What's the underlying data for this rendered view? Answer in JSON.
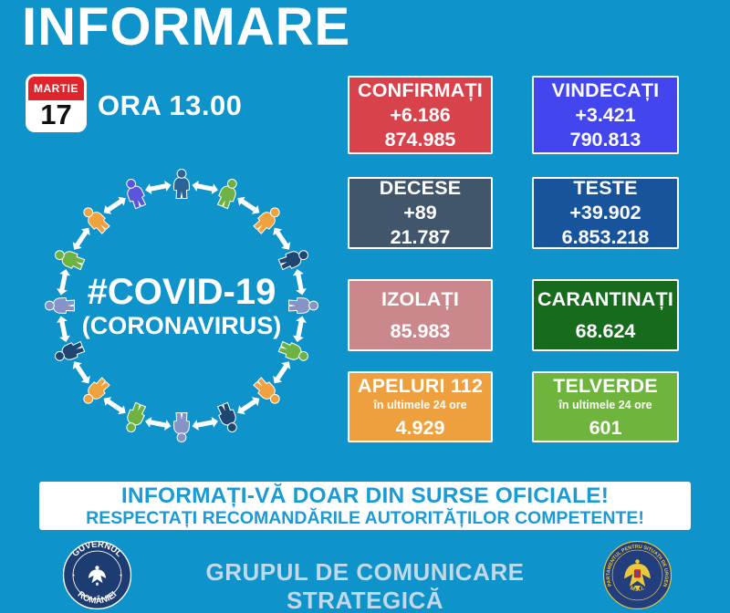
{
  "page": {
    "background": "#0e93cb"
  },
  "header": {
    "title": "INFORMARE"
  },
  "date": {
    "month": "MARTIE",
    "day": "17",
    "time_label": "ORA 13.00",
    "calendar_red": "#e0242c"
  },
  "circle": {
    "line1": "#COVID-19",
    "line2": "(CORONAVIRUS)",
    "arrow_color": "#ffffff",
    "person_colors": [
      "#2a6496",
      "#6fb244",
      "#f0a23e",
      "#1f4571",
      "#8593c6",
      "#6fb244",
      "#f0a23e",
      "#1f4571",
      "#8593c6",
      "#6fb244",
      "#f0a23e",
      "#1f4571",
      "#8593c6",
      "#6fb244",
      "#f0a23e",
      "#5b55dd"
    ]
  },
  "stats": [
    {
      "title": "CONFIRMAȚI",
      "delta": "+6.186",
      "total": "874.985",
      "bg": "#d8434b"
    },
    {
      "title": "VINDECAȚI",
      "delta": "+3.421",
      "total": "790.813",
      "bg": "#4345ee"
    },
    {
      "title": "DECESE",
      "delta": "+89",
      "total": "21.787",
      "bg": "#41566a"
    },
    {
      "title": "TESTE",
      "delta": "+39.902",
      "total": "6.853.218",
      "bg": "#17549b"
    },
    {
      "title": "IZOLAȚI",
      "total": "85.983",
      "bg": "#ca878c"
    },
    {
      "title": "CARANTINAȚI",
      "total": "68.624",
      "bg": "#176b1d"
    },
    {
      "title": "APELURI 112",
      "subtitle": "în ultimele 24 ore",
      "total": "4.929",
      "bg": "#eda03d"
    },
    {
      "title": "TELVERDE",
      "subtitle": "în ultimele 24 ore",
      "total": "601",
      "bg": "#6eb43d"
    }
  ],
  "notice": {
    "line1": "INFORMAȚI-VĂ DOAR DIN SURSE OFICIALE!",
    "line2": "RESPECTAȚI RECOMANDĂRILE AUTORITĂȚILOR COMPETENTE!",
    "text_color": "#1b9ad5"
  },
  "footer": {
    "center_text": "GRUPUL DE COMUNICARE STRATEGICĂ",
    "text_color": "#c3d9ea",
    "left_seal": {
      "top_text": "GUVERNUL",
      "bottom_text": "ROMÂNIEI",
      "bg": "#1d3d72",
      "text_color": "#ffffff"
    },
    "right_seal": {
      "top_text": "DEPARTAMENTUL PENTRU SITUAȚII DE URGENȚĂ",
      "bottom_text": "M.A.I.",
      "bg": "#223e7d",
      "text_color": "#ecc93b"
    }
  }
}
